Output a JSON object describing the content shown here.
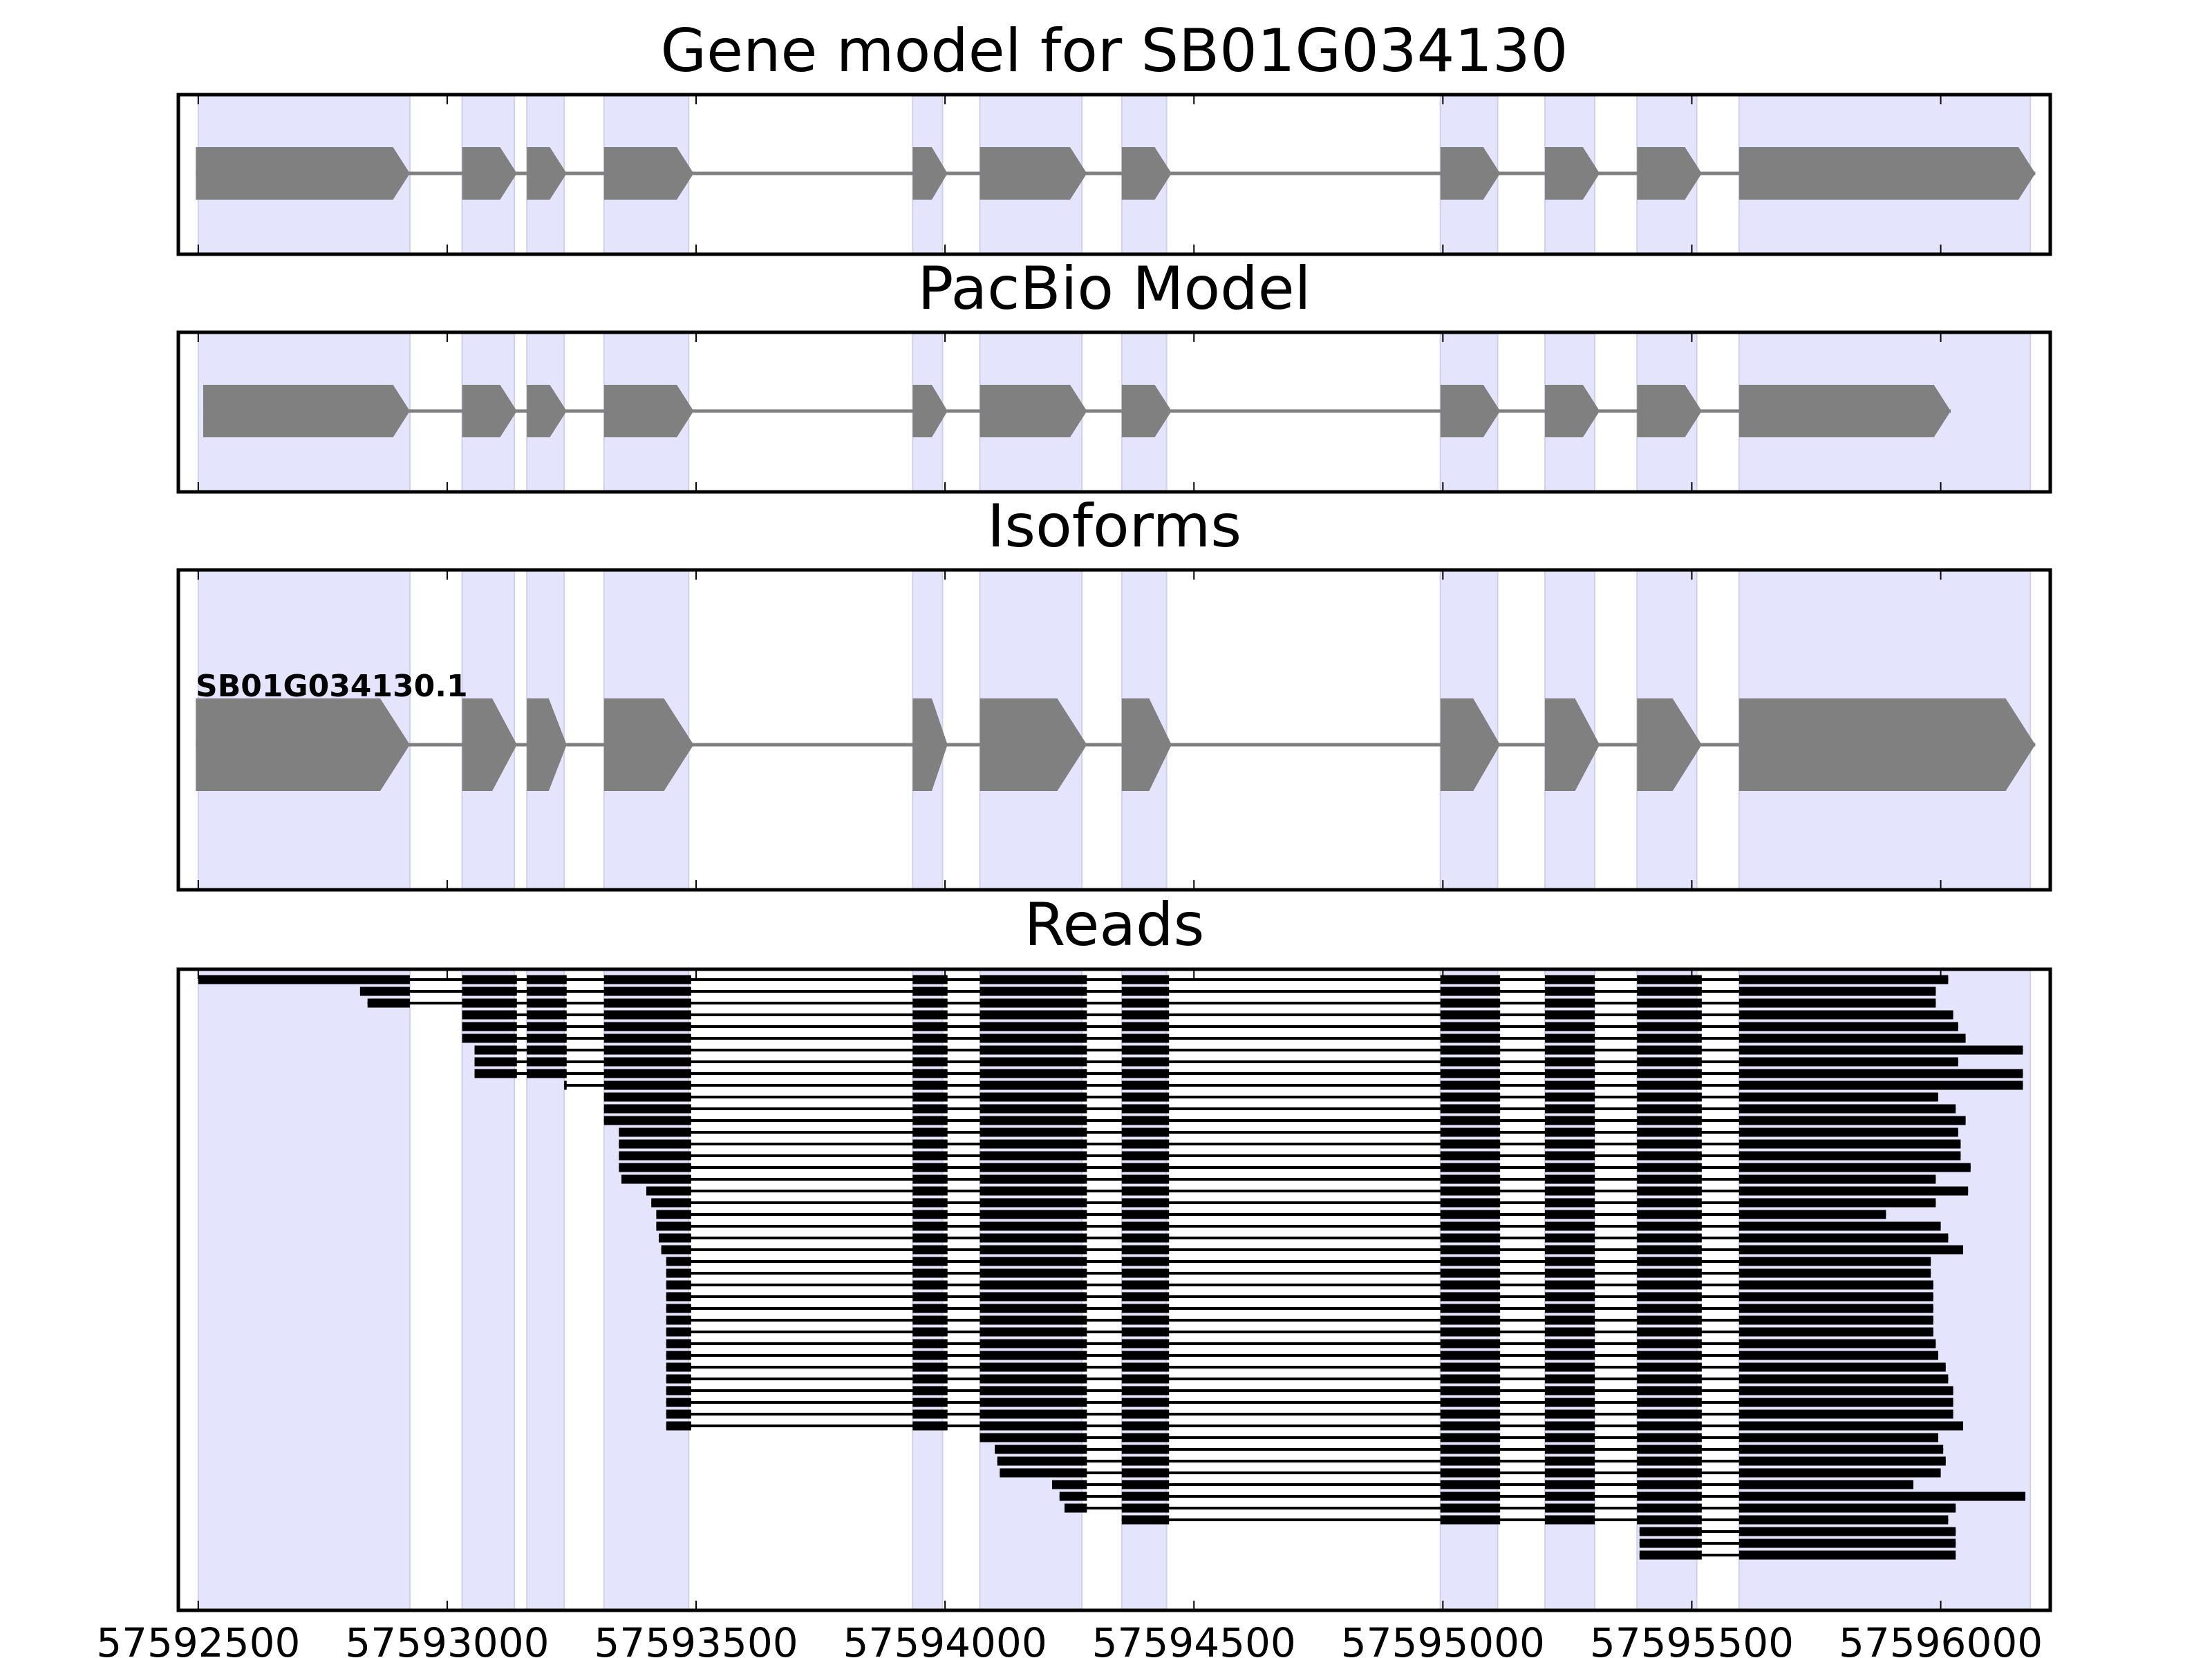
{
  "chart_data": {
    "type": "gene-structure",
    "xlim": [
      57592460,
      57596220
    ],
    "xticks": [
      57592500,
      57593000,
      57593500,
      57594000,
      57594500,
      57595000,
      57595500,
      57596000
    ],
    "xtick_labels": [
      "57592500",
      "57593000",
      "57593500",
      "57594000",
      "57594500",
      "57595000",
      "57595500",
      "57596000"
    ],
    "highlight_color": "#e4e4fc",
    "model_color": "#808080",
    "read_color": "#000000",
    "exon_regions": [
      [
        57592500,
        57592925
      ],
      [
        57593030,
        57593135
      ],
      [
        57593160,
        57593235
      ],
      [
        57593315,
        57593485
      ],
      [
        57593935,
        57593995
      ],
      [
        57594070,
        57594275
      ],
      [
        57594355,
        57594445
      ],
      [
        57594995,
        57595110
      ],
      [
        57595205,
        57595305
      ],
      [
        57595390,
        57595510
      ],
      [
        57595595,
        57596180
      ]
    ],
    "panels": {
      "gene_model": {
        "title": "Gene model for SB01G034130",
        "exons": [
          [
            57592495,
            57592925
          ],
          [
            57593030,
            57593140
          ],
          [
            57593160,
            57593240
          ],
          [
            57593315,
            57593495
          ],
          [
            57593935,
            57594005
          ],
          [
            57594070,
            57594285
          ],
          [
            57594355,
            57594455
          ],
          [
            57594995,
            57595115
          ],
          [
            57595205,
            57595315
          ],
          [
            57595390,
            57595520
          ],
          [
            57595595,
            57596190
          ]
        ]
      },
      "pacbio_model": {
        "title": "PacBio Model",
        "exons": [
          [
            57592510,
            57592925
          ],
          [
            57593030,
            57593140
          ],
          [
            57593160,
            57593240
          ],
          [
            57593315,
            57593495
          ],
          [
            57593935,
            57594005
          ],
          [
            57594070,
            57594285
          ],
          [
            57594355,
            57594455
          ],
          [
            57594995,
            57595115
          ],
          [
            57595205,
            57595315
          ],
          [
            57595390,
            57595520
          ],
          [
            57595595,
            57596020
          ]
        ]
      },
      "isoforms": {
        "title": "Isoforms",
        "isoforms": [
          {
            "name": "SB01G034130.1",
            "exons": [
              [
                57592495,
                57592925
              ],
              [
                57593030,
                57593140
              ],
              [
                57593160,
                57593240
              ],
              [
                57593315,
                57593495
              ],
              [
                57593935,
                57594005
              ],
              [
                57594070,
                57594285
              ],
              [
                57594355,
                57594455
              ],
              [
                57594995,
                57595115
              ],
              [
                57595205,
                57595315
              ],
              [
                57595390,
                57595520
              ],
              [
                57595595,
                57596190
              ]
            ]
          }
        ]
      },
      "reads": {
        "title": "Reads",
        "exon_bounds": [
          [
            null,
            57592925
          ],
          [
            57593030,
            57593140
          ],
          [
            57593160,
            57593240
          ],
          [
            57593315,
            57593490
          ],
          [
            57593935,
            57594005
          ],
          [
            57594070,
            57594285
          ],
          [
            57594355,
            57594450
          ],
          [
            57594995,
            57595115
          ],
          [
            57595205,
            57595305
          ],
          [
            57595390,
            57595520
          ],
          [
            57595595,
            null
          ]
        ],
        "reads": [
          [
            57592500,
            57596015
          ],
          [
            57592825,
            57595990
          ],
          [
            57592840,
            57595990
          ],
          [
            57593025,
            57596025
          ],
          [
            57593025,
            57596035
          ],
          [
            57593025,
            57596050
          ],
          [
            57593055,
            57596165
          ],
          [
            57593055,
            57596035
          ],
          [
            57593055,
            57596165
          ],
          [
            57593235,
            57596165
          ],
          [
            57593315,
            57595995
          ],
          [
            57593315,
            57596030
          ],
          [
            57593315,
            57596050
          ],
          [
            57593345,
            57596035
          ],
          [
            57593345,
            57596040
          ],
          [
            57593345,
            57596040
          ],
          [
            57593345,
            57596060
          ],
          [
            57593350,
            57595990
          ],
          [
            57593400,
            57596055
          ],
          [
            57593410,
            57595990
          ],
          [
            57593420,
            57595890
          ],
          [
            57593420,
            57596000
          ],
          [
            57593425,
            57596015
          ],
          [
            57593430,
            57596045
          ],
          [
            57593440,
            57595980
          ],
          [
            57593440,
            57595980
          ],
          [
            57593440,
            57595985
          ],
          [
            57593440,
            57595985
          ],
          [
            57593440,
            57595985
          ],
          [
            57593440,
            57595985
          ],
          [
            57593440,
            57595985
          ],
          [
            57593440,
            57595990
          ],
          [
            57593440,
            57595995
          ],
          [
            57593440,
            57596010
          ],
          [
            57593440,
            57596015
          ],
          [
            57593440,
            57596025
          ],
          [
            57593440,
            57596025
          ],
          [
            57593440,
            57596025
          ],
          [
            57593440,
            57596045
          ],
          [
            57594070,
            57595995
          ],
          [
            57594100,
            57596005
          ],
          [
            57594105,
            57596010
          ],
          [
            57594110,
            57596000
          ],
          [
            57594215,
            57595945
          ],
          [
            57594230,
            57596170
          ],
          [
            57594240,
            57596030
          ],
          [
            57594355,
            57596015
          ],
          [
            57595395,
            57596030
          ],
          [
            57595395,
            57596030
          ],
          [
            57595395,
            57596030
          ]
        ]
      }
    }
  }
}
